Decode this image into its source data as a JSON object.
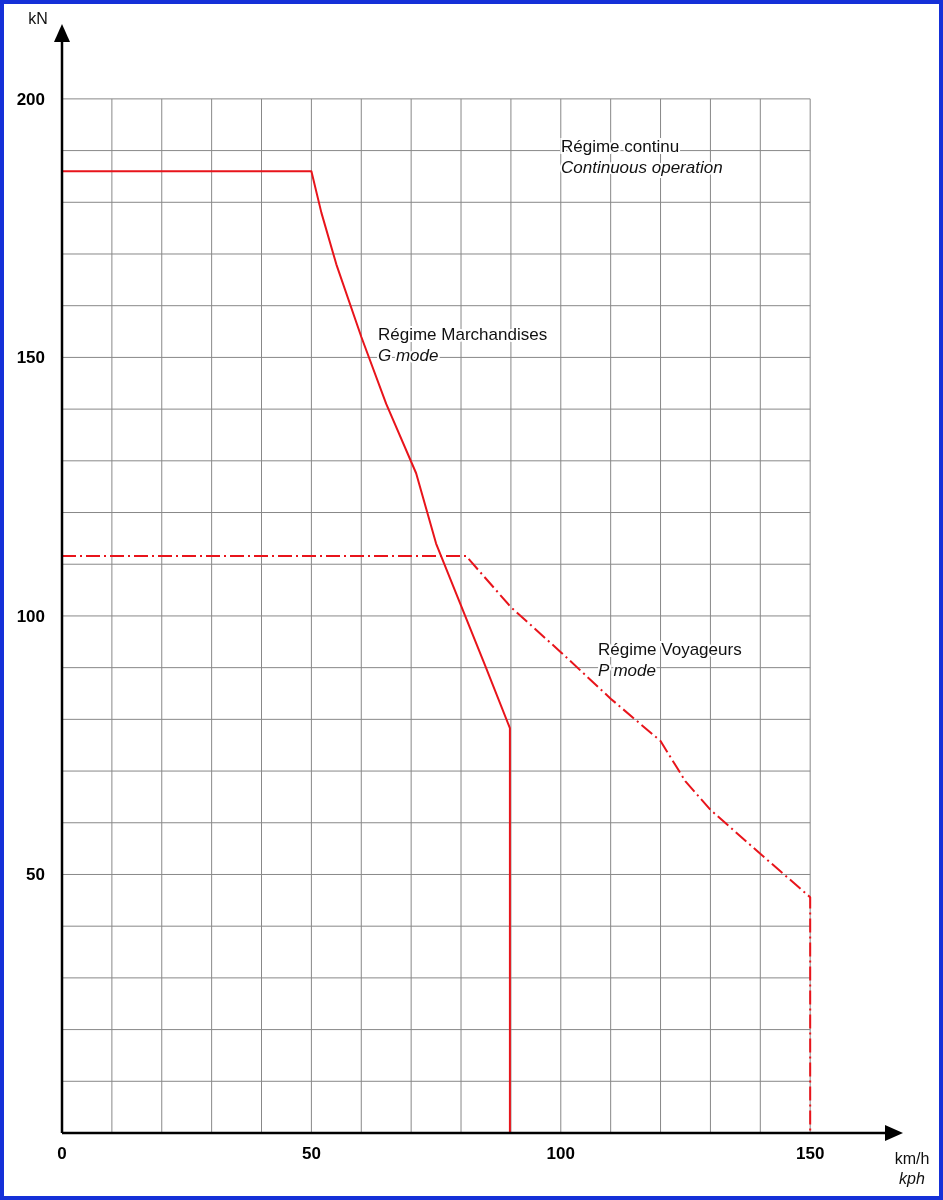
{
  "chart_data": {
    "type": "line",
    "xlabel": "km/h\nkph",
    "ylabel": "kN",
    "annotations": [
      "Régime continu\nContinuous operation"
    ],
    "series": [
      {
        "name": "Régime Marchandises\nG mode",
        "color": "#e8141b",
        "line_style": "solid",
        "x": [
          0,
          50,
          52,
          55,
          60,
          65,
          71,
          75,
          80,
          85,
          89.8,
          89.8
        ],
        "values": [
          186,
          186,
          178,
          168,
          154,
          141,
          127.6,
          114,
          102,
          90,
          78.3,
          0
        ]
      },
      {
        "name": "Régime Voyageurs\nP mode",
        "color": "#e8141b",
        "line_style": "dashdot",
        "x": [
          0,
          81,
          90,
          100,
          110,
          120,
          125,
          130,
          140,
          150,
          150
        ],
        "values": [
          111.6,
          111.6,
          101.7,
          93,
          84,
          75.8,
          68,
          62.5,
          54,
          45.6,
          0
        ]
      }
    ],
    "xlim": [
      0,
      165
    ],
    "ylim": [
      0,
      211
    ],
    "xticks": [
      0,
      {
        "value": 10,
        "label": null
      },
      {
        "value": 20,
        "label": null
      },
      {
        "value": 30,
        "label": null
      },
      {
        "value": 40,
        "label": null
      },
      50,
      {
        "value": 60,
        "label": null
      },
      {
        "value": 70,
        "label": null
      },
      {
        "value": 80,
        "label": null
      },
      {
        "value": 90,
        "label": null
      },
      100,
      {
        "value": 110,
        "label": null
      },
      {
        "value": 120,
        "label": null
      },
      {
        "value": 130,
        "label": null
      },
      {
        "value": 140,
        "label": null
      },
      150
    ],
    "yticks": [
      {
        "value": 10,
        "label": null
      },
      {
        "value": 20,
        "label": null
      },
      {
        "value": 30,
        "label": null
      },
      {
        "value": 40,
        "label": null
      },
      50,
      {
        "value": 60,
        "label": null
      },
      {
        "value": 70,
        "label": null
      },
      {
        "value": 80,
        "label": null
      },
      {
        "value": 90,
        "label": null
      },
      100,
      {
        "value": 110,
        "label": null
      },
      {
        "value": 120,
        "label": null
      },
      {
        "value": 130,
        "label": null
      },
      {
        "value": 140,
        "label": null
      },
      150,
      {
        "value": 160,
        "label": null
      },
      {
        "value": 170,
        "label": null
      },
      {
        "value": 180,
        "label": null
      },
      {
        "value": 190,
        "label": null
      },
      200
    ],
    "grid": true
  }
}
